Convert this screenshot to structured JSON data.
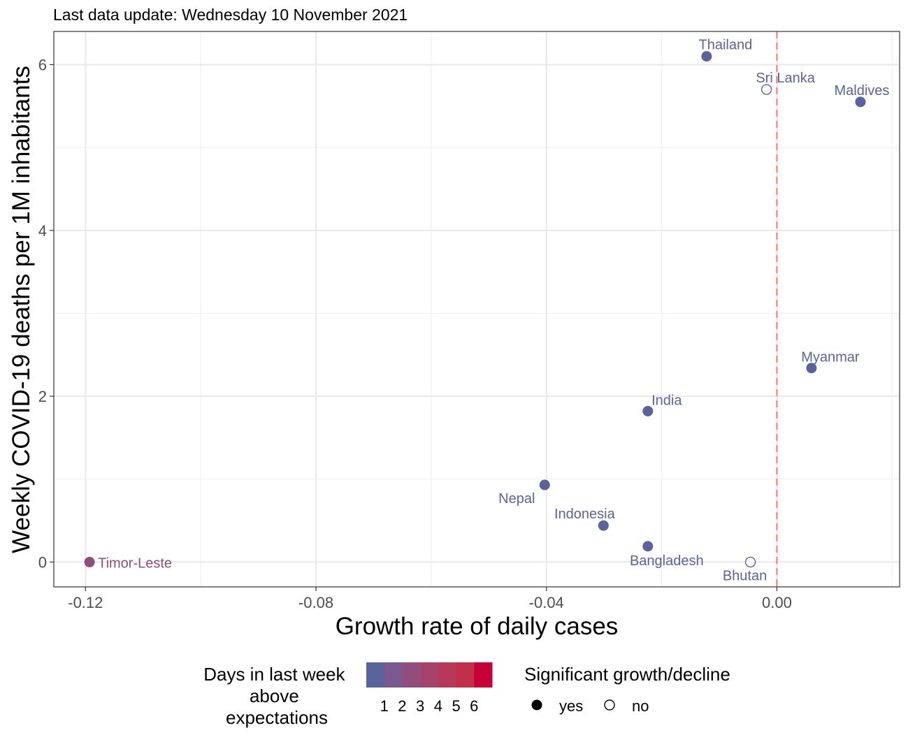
{
  "chart_data": {
    "type": "scatter",
    "subtitle": "Last data update: Wednesday 10 November 2021",
    "xlabel": "Growth rate of daily cases",
    "ylabel": "Weekly COVID-19 deaths per 1M inhabitants",
    "xlim": [
      -0.1255,
      0.0213
    ],
    "ylim": [
      -0.3,
      6.4
    ],
    "x_ticks": [
      -0.12,
      -0.08,
      -0.04,
      0.0
    ],
    "x_tick_labels": [
      "-0.12",
      "-0.08",
      "-0.04",
      "0.00"
    ],
    "y_ticks": [
      0,
      2,
      4,
      6
    ],
    "y_tick_labels": [
      "0",
      "2",
      "4",
      "6"
    ],
    "reference_line": {
      "x": 0.0,
      "style": "dashed",
      "color": "#f8766d"
    },
    "grid": true,
    "points": [
      {
        "label": "Thailand",
        "x": -0.0122,
        "y": 6.1,
        "significant": true,
        "days": 1
      },
      {
        "label": "Sri Lanka",
        "x": -0.0018,
        "y": 5.7,
        "significant": false,
        "days": 1
      },
      {
        "label": "Maldives",
        "x": 0.0145,
        "y": 5.55,
        "significant": true,
        "days": 1
      },
      {
        "label": "Myanmar",
        "x": 0.006,
        "y": 2.34,
        "significant": true,
        "days": 1
      },
      {
        "label": "India",
        "x": -0.0224,
        "y": 1.82,
        "significant": true,
        "days": 1
      },
      {
        "label": "Nepal",
        "x": -0.0403,
        "y": 0.93,
        "significant": true,
        "days": 1
      },
      {
        "label": "Indonesia",
        "x": -0.0301,
        "y": 0.44,
        "significant": true,
        "days": 1
      },
      {
        "label": "Bangladesh",
        "x": -0.0224,
        "y": 0.19,
        "significant": true,
        "days": 1
      },
      {
        "label": "Bhutan",
        "x": -0.0046,
        "y": 0.0,
        "significant": false,
        "days": 1
      },
      {
        "label": "Timor-Leste",
        "x": -0.1193,
        "y": 0.0,
        "significant": true,
        "days": 2
      }
    ],
    "legend": {
      "placement": "bottom",
      "color_title_lines": [
        "Days in last week",
        "above",
        "expectations"
      ],
      "color_scale": [
        "#5a639c",
        "#7a5990",
        "#904e7f",
        "#a6436d",
        "#b7395a",
        "#c22f48",
        "#c8003a"
      ],
      "color_tick_labels": [
        "1",
        "2",
        "3",
        "4",
        "5",
        "6"
      ],
      "shape_title": "Significant growth/decline",
      "shape_entries": [
        {
          "label": "yes",
          "filled": true
        },
        {
          "label": "no",
          "filled": false
        }
      ]
    },
    "colors": {
      "days_1": "#5a639c",
      "days_2": "#8e4f7c"
    }
  }
}
